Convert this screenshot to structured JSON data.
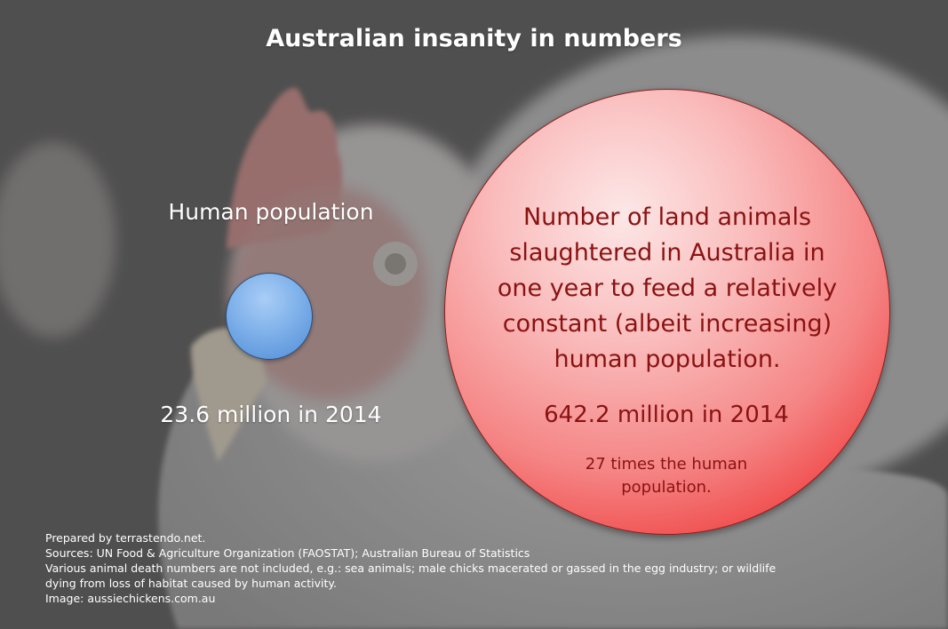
{
  "title": "Australian insanity in numbers",
  "human": {
    "label": "Human population",
    "value": "23.6 million in 2014",
    "circle_color": "#7fb1ea"
  },
  "animals": {
    "description": "Number of land animals slaughtered in Australia in one year to feed a relatively constant (albeit increasing) human population.",
    "value": "642.2 million in 2014",
    "note": "27 times the human population.",
    "circle_color": "#ef3a3a",
    "text_color": "#8a1212"
  },
  "footer": {
    "prepared_by": "Prepared by terrastendo.net.",
    "sources": "Sources: UN Food & Agriculture Organization (FAOSTAT); Australian Bureau of Statistics",
    "note_line1": "Various animal death numbers are not included, e.g.: sea animals; male chicks macerated or gassed in the egg industry; or wildlife",
    "note_line2": "dying from loss of habitat caused by human activity.",
    "image_credit": "Image: aussiechickens.com.au"
  }
}
